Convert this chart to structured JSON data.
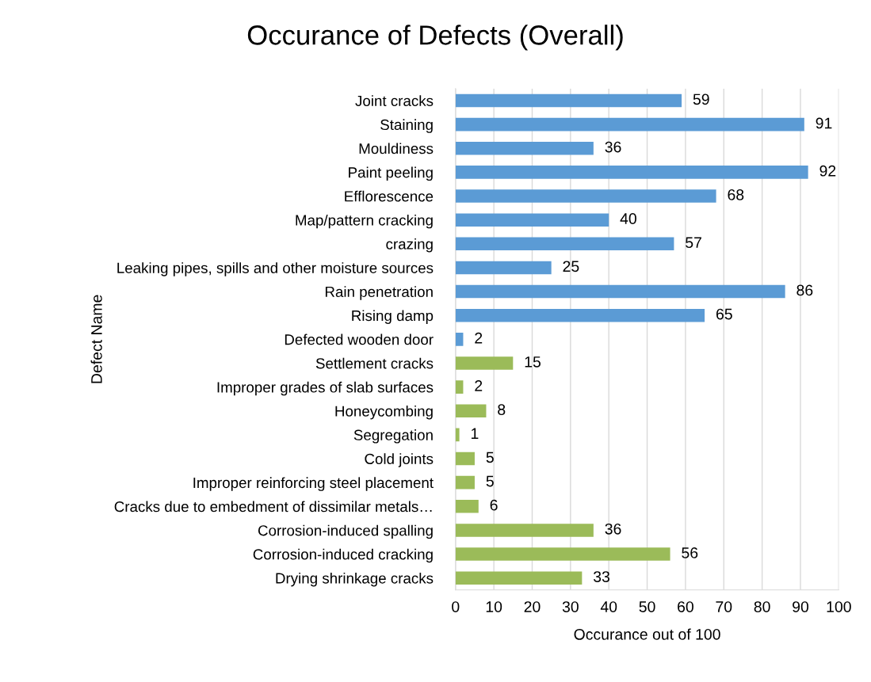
{
  "chart_data": {
    "type": "bar",
    "orientation": "horizontal",
    "title": "Occurance of Defects (Overall)",
    "xlabel": "Occurance out of 100",
    "ylabel": "Defect Name",
    "categories": [
      "Joint cracks",
      "Staining",
      "Mouldiness",
      "Paint peeling",
      "Efflorescence",
      "Map/pattern cracking",
      "crazing",
      "Leaking pipes, spills and other moisture sources",
      "Rain penetration",
      "Rising damp",
      "Defected wooden door",
      "Settlement cracks",
      "Improper grades of slab surfaces",
      "Honeycombing",
      "Segregation",
      "Cold joints",
      "Improper reinforcing steel placement",
      "Cracks due to embedment of dissimilar metals…",
      "Corrosion-induced spalling",
      "Corrosion-induced cracking",
      "Drying shrinkage cracks"
    ],
    "values": [
      59,
      91,
      36,
      92,
      68,
      40,
      57,
      25,
      86,
      65,
      2,
      15,
      2,
      8,
      1,
      5,
      5,
      6,
      36,
      56,
      33
    ],
    "colors": [
      "#5b9bd5",
      "#5b9bd5",
      "#5b9bd5",
      "#5b9bd5",
      "#5b9bd5",
      "#5b9bd5",
      "#5b9bd5",
      "#5b9bd5",
      "#5b9bd5",
      "#5b9bd5",
      "#5b9bd5",
      "#9bbb59",
      "#9bbb59",
      "#9bbb59",
      "#9bbb59",
      "#9bbb59",
      "#9bbb59",
      "#9bbb59",
      "#9bbb59",
      "#9bbb59",
      "#9bbb59"
    ],
    "xlim": [
      0,
      100
    ],
    "xticks": [
      0,
      10,
      20,
      30,
      40,
      50,
      60,
      70,
      80,
      90,
      100
    ],
    "grid": "x",
    "data_labels": true
  }
}
